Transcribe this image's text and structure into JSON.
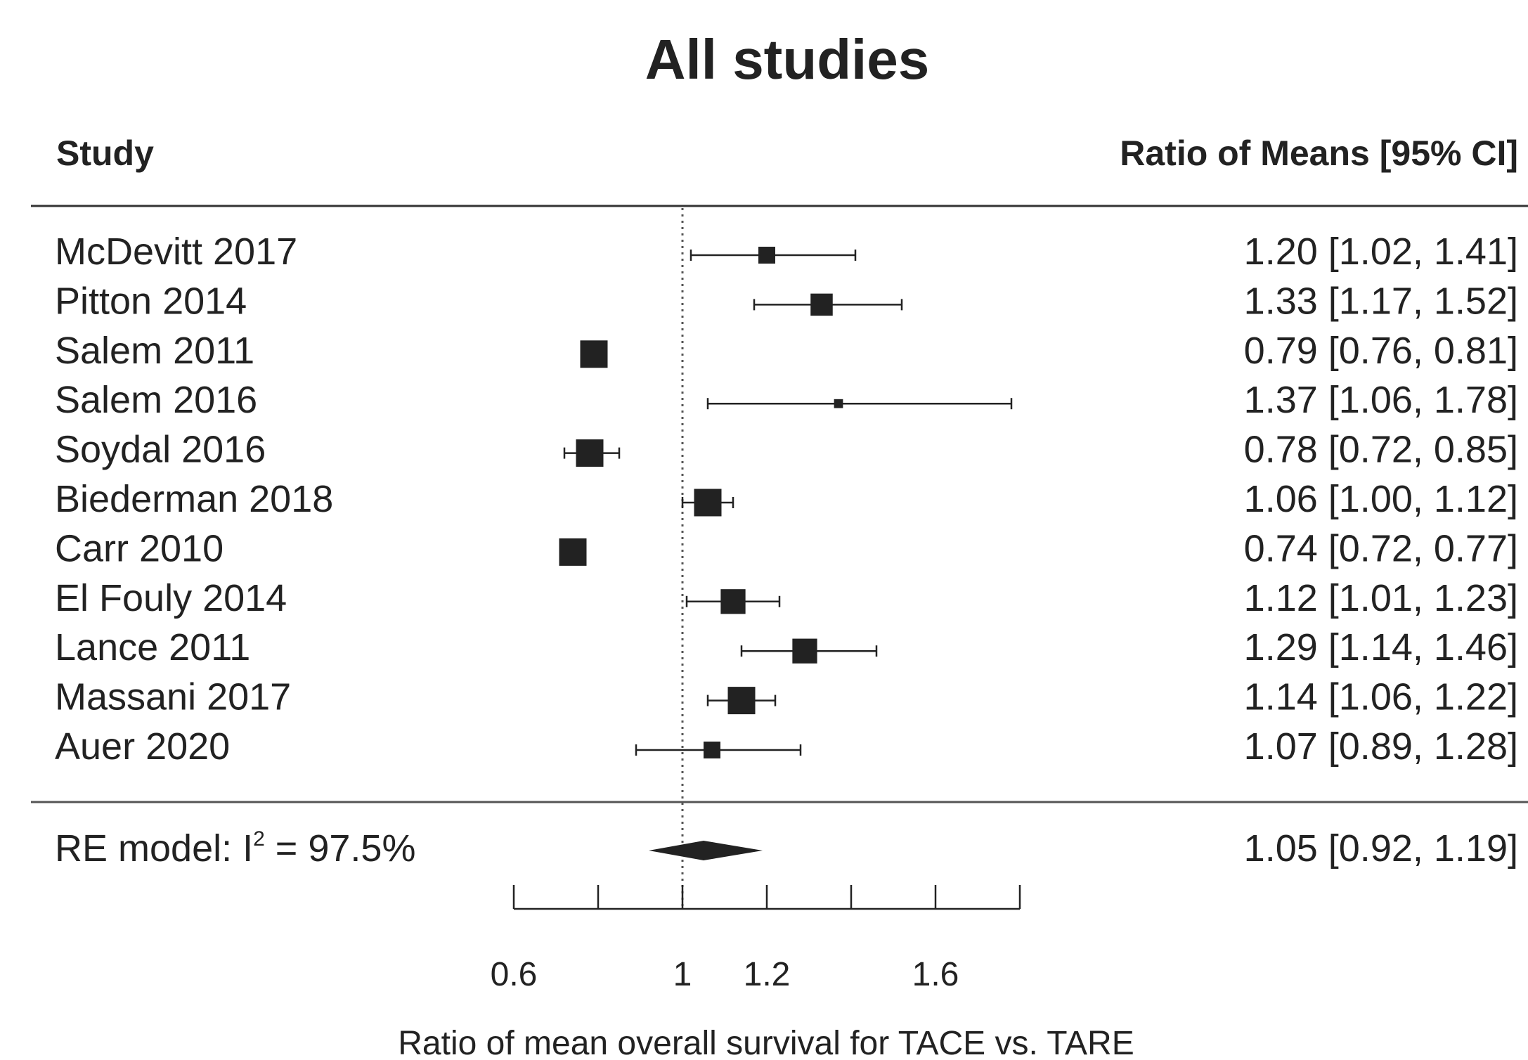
{
  "chart_data": {
    "type": "forest",
    "title": "All studies",
    "column_headers": {
      "study": "Study",
      "estimate": "Ratio of Means [95% CI]"
    },
    "xlabel": "Ratio of mean overall survival for TACE vs. TARE",
    "xlim": [
      0.6,
      1.8
    ],
    "xticks": [
      0.6,
      0.8,
      1.0,
      1.2,
      1.4,
      1.6,
      1.8
    ],
    "xtick_labels": [
      "0.6",
      "",
      "1",
      "1.2",
      "",
      "1.6",
      ""
    ],
    "reference_line": 1.0,
    "studies": [
      {
        "name": "McDevitt 2017",
        "est": 1.2,
        "lo": 1.02,
        "hi": 1.41,
        "weight": 2,
        "label": "1.20 [1.02, 1.41]"
      },
      {
        "name": "Pitton 2014",
        "est": 1.33,
        "lo": 1.17,
        "hi": 1.52,
        "weight": 3,
        "label": "1.33 [1.17, 1.52]"
      },
      {
        "name": "Salem 2011",
        "est": 0.79,
        "lo": 0.76,
        "hi": 0.81,
        "weight": 4,
        "label": "0.79 [0.76, 0.81]"
      },
      {
        "name": "Salem 2016",
        "est": 1.37,
        "lo": 1.06,
        "hi": 1.78,
        "weight": 0.5,
        "label": "1.37 [1.06, 1.78]"
      },
      {
        "name": "Soydal 2016",
        "est": 0.78,
        "lo": 0.72,
        "hi": 0.85,
        "weight": 4,
        "label": "0.78 [0.72, 0.85]"
      },
      {
        "name": "Biederman 2018",
        "est": 1.06,
        "lo": 1.0,
        "hi": 1.12,
        "weight": 4,
        "label": "1.06 [1.00, 1.12]"
      },
      {
        "name": "Carr 2010",
        "est": 0.74,
        "lo": 0.72,
        "hi": 0.77,
        "weight": 4,
        "label": "0.74 [0.72, 0.77]"
      },
      {
        "name": "El Fouly 2014",
        "est": 1.12,
        "lo": 1.01,
        "hi": 1.23,
        "weight": 3.5,
        "label": "1.12 [1.01, 1.23]"
      },
      {
        "name": "Lance 2011",
        "est": 1.29,
        "lo": 1.14,
        "hi": 1.46,
        "weight": 3.5,
        "label": "1.29 [1.14, 1.46]"
      },
      {
        "name": "Massani 2017",
        "est": 1.14,
        "lo": 1.06,
        "hi": 1.22,
        "weight": 4,
        "label": "1.14 [1.06, 1.22]"
      },
      {
        "name": "Auer 2020",
        "est": 1.07,
        "lo": 0.89,
        "hi": 1.28,
        "weight": 2,
        "label": "1.07 [0.89, 1.28]"
      }
    ],
    "summary": {
      "label_prefix": "RE model: I",
      "label_sup": "2",
      "label_suffix": " = 97.5%",
      "est": 1.05,
      "lo": 0.92,
      "hi": 1.19,
      "label": "1.05 [0.92, 1.19]"
    },
    "colors": {
      "mark": "#222222",
      "text": "#222222",
      "refline": "#555555"
    }
  }
}
